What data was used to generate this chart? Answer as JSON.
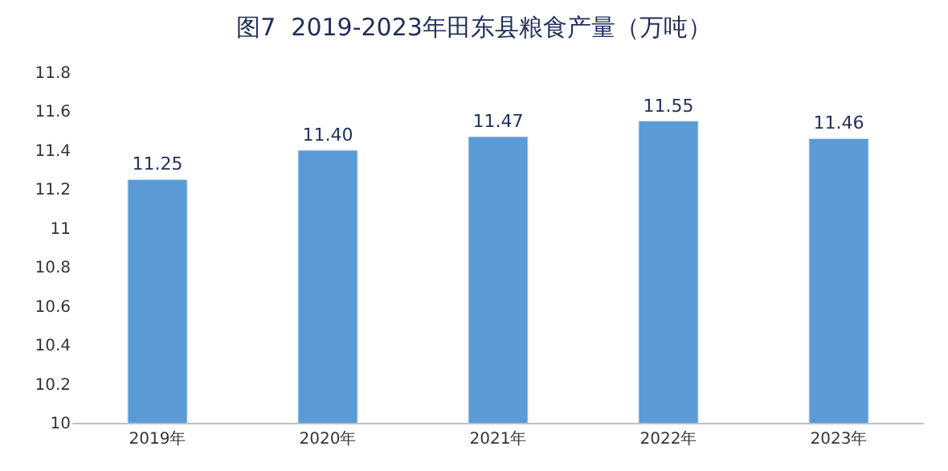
{
  "chart_data": {
    "type": "bar",
    "title": "图7  2019-2023年田东县粮食产量（万吨）",
    "categories": [
      "2019年",
      "2020年",
      "2021年",
      "2022年",
      "2023年"
    ],
    "values": [
      11.25,
      11.4,
      11.47,
      11.55,
      11.46
    ],
    "value_labels": [
      "11.25",
      "11.40",
      "11.47",
      "11.55",
      "11.46"
    ],
    "color": "#5b9bd5",
    "ylim": [
      10,
      11.8
    ],
    "yticks": [
      10,
      10.2,
      10.4,
      10.6,
      10.8,
      11,
      11.2,
      11.4,
      11.6,
      11.8
    ],
    "legend": false
  }
}
